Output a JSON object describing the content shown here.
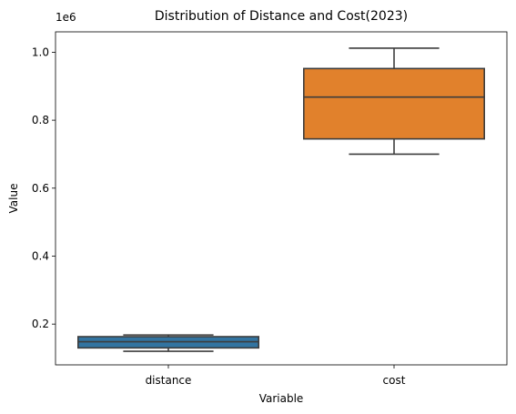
{
  "chart_data": {
    "type": "box",
    "title": "Distribution of Distance and Cost(2023)",
    "xlabel": "Variable",
    "ylabel": "Value",
    "y_scale_label": "1e6",
    "ylim": [
      0.08,
      1.06
    ],
    "yticks": [
      0.2,
      0.4,
      0.6,
      0.8,
      1.0
    ],
    "ytick_labels": [
      "0.2",
      "0.4",
      "0.6",
      "0.8",
      "1.0"
    ],
    "categories": [
      "distance",
      "cost"
    ],
    "boxes": [
      {
        "name": "distance",
        "color": "#3274a1",
        "whisker_low": 0.12,
        "q1": 0.13,
        "median": 0.148,
        "q3": 0.163,
        "whisker_high": 0.168
      },
      {
        "name": "cost",
        "color": "#e1812c",
        "whisker_low": 0.7,
        "q1": 0.745,
        "median": 0.868,
        "q3": 0.952,
        "whisker_high": 1.012
      }
    ],
    "grid": false
  }
}
